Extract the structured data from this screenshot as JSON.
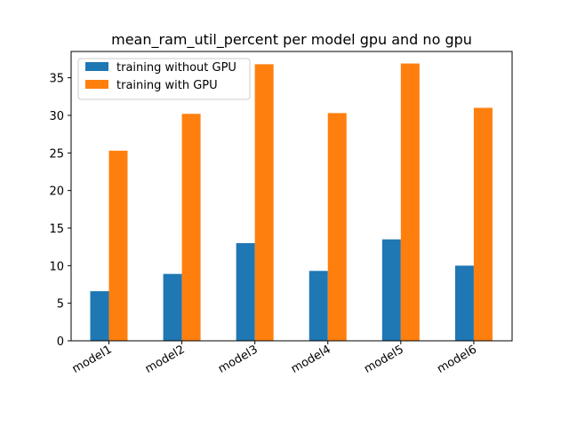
{
  "chart_data": {
    "type": "bar",
    "title": "mean_ram_util_percent per model gpu and no gpu",
    "xlabel": "",
    "ylabel": "",
    "categories": [
      "model1",
      "model2",
      "model3",
      "model4",
      "model5",
      "model6"
    ],
    "series": [
      {
        "name": "training without GPU",
        "color": "#1f77b4",
        "values": [
          6.6,
          8.9,
          13.0,
          9.3,
          13.5,
          10.0
        ]
      },
      {
        "name": "training with GPU",
        "color": "#ff7f0e",
        "values": [
          25.3,
          30.2,
          36.8,
          30.3,
          36.9,
          31.0
        ]
      }
    ],
    "ylim": [
      0,
      38.5
    ],
    "yticks": [
      0,
      5,
      10,
      15,
      20,
      25,
      30,
      35
    ],
    "grid": false,
    "legend_position": "top-left"
  }
}
